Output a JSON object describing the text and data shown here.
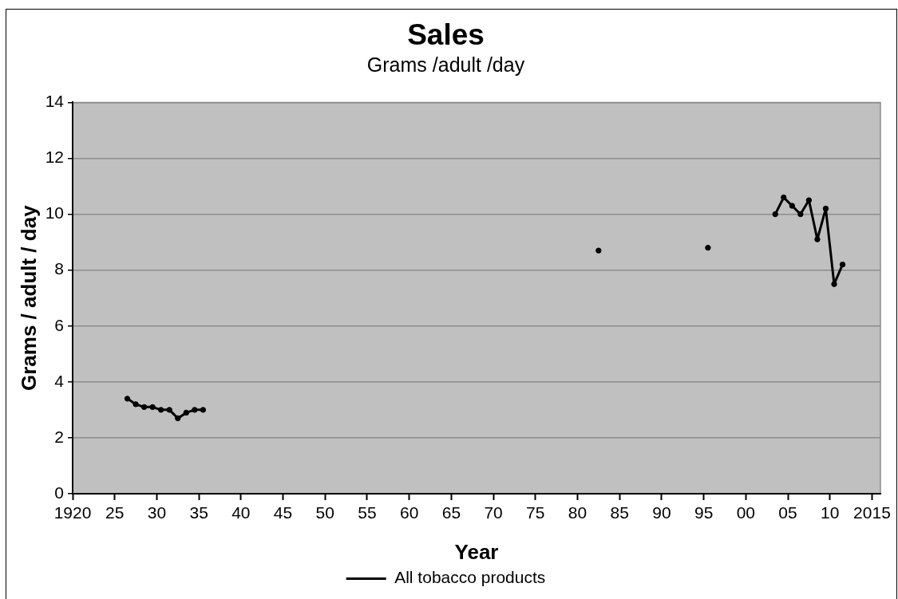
{
  "chart_data": {
    "type": "line",
    "title": "Sales",
    "subtitle": "Grams /adult /day",
    "xlabel": "Year",
    "ylabel": "Grams / adult / day",
    "x": [
      1926.5,
      1927.5,
      1928.5,
      1929.5,
      1930.5,
      1931.5,
      1932.5,
      1933.5,
      1934.5,
      1935.5,
      1936.5,
      1982.5,
      1983.5,
      1995.5,
      1996.5,
      2003.5,
      2004.5,
      2005.5,
      2006.5,
      2007.5,
      2008.5,
      2009.5,
      2010.5,
      2011.5
    ],
    "series": [
      {
        "name": "All tobacco products",
        "color": "#000000",
        "values": [
          3.4,
          3.2,
          3.1,
          3.1,
          3.0,
          3.0,
          2.7,
          2.9,
          3.0,
          3.0,
          null,
          8.7,
          null,
          8.8,
          null,
          10.0,
          10.6,
          10.3,
          10.0,
          10.5,
          9.1,
          10.2,
          7.5,
          8.2
        ]
      }
    ],
    "xlim": [
      1920,
      2016
    ],
    "xticks": [
      1920,
      {
        "value": 1925,
        "label": "25"
      },
      {
        "value": 1930,
        "label": "30"
      },
      {
        "value": 1935,
        "label": "35"
      },
      {
        "value": 1940,
        "label": "40"
      },
      {
        "value": 1945,
        "label": "45"
      },
      {
        "value": 1950,
        "label": "50"
      },
      {
        "value": 1955,
        "label": "55"
      },
      {
        "value": 1960,
        "label": "60"
      },
      {
        "value": 1965,
        "label": "65"
      },
      {
        "value": 1970,
        "label": "70"
      },
      {
        "value": 1975,
        "label": "75"
      },
      {
        "value": 1980,
        "label": "80"
      },
      {
        "value": 1985,
        "label": "85"
      },
      {
        "value": 1990,
        "label": "90"
      },
      {
        "value": 1995,
        "label": "95"
      },
      {
        "value": 2000,
        "label": "00"
      },
      {
        "value": 2005,
        "label": "05"
      },
      {
        "value": 2010,
        "label": "10"
      },
      2015
    ],
    "ylim": [
      0,
      14
    ],
    "yticks": [
      0,
      2,
      4,
      6,
      8,
      10,
      12,
      14
    ],
    "grid": "y",
    "legend": "bottom",
    "marker": "circle",
    "line_style": "solid"
  }
}
